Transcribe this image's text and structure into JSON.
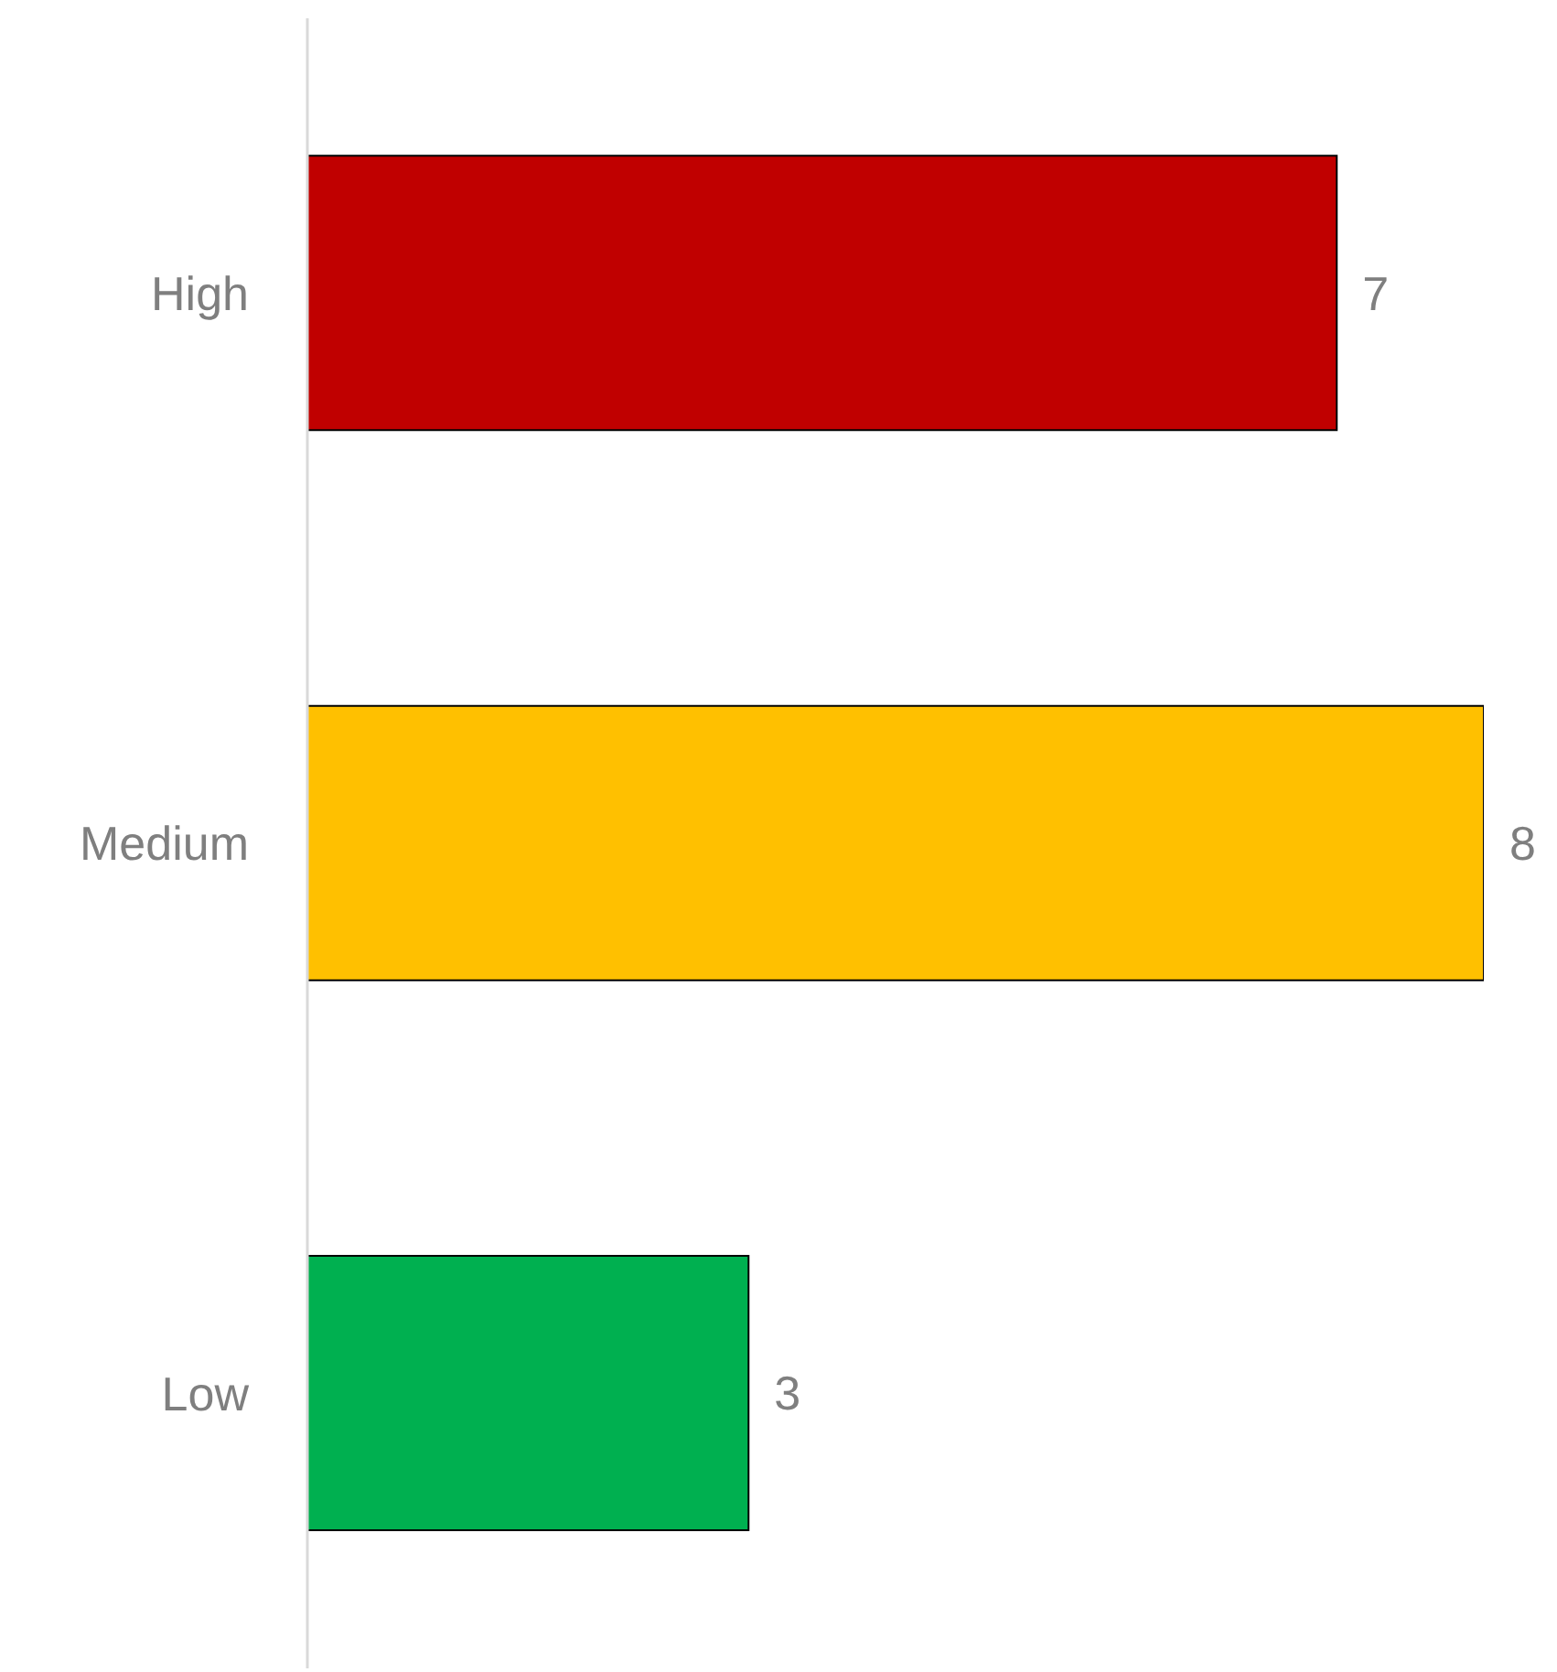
{
  "chart_data": {
    "type": "bar",
    "orientation": "horizontal",
    "categories": [
      "High",
      "Medium",
      "Low"
    ],
    "values": [
      7,
      8,
      3
    ],
    "colors": [
      "#c00000",
      "#ffc000",
      "#00b050"
    ],
    "xlim": [
      0,
      8
    ],
    "tick_labels": "y",
    "data_labels": true
  }
}
